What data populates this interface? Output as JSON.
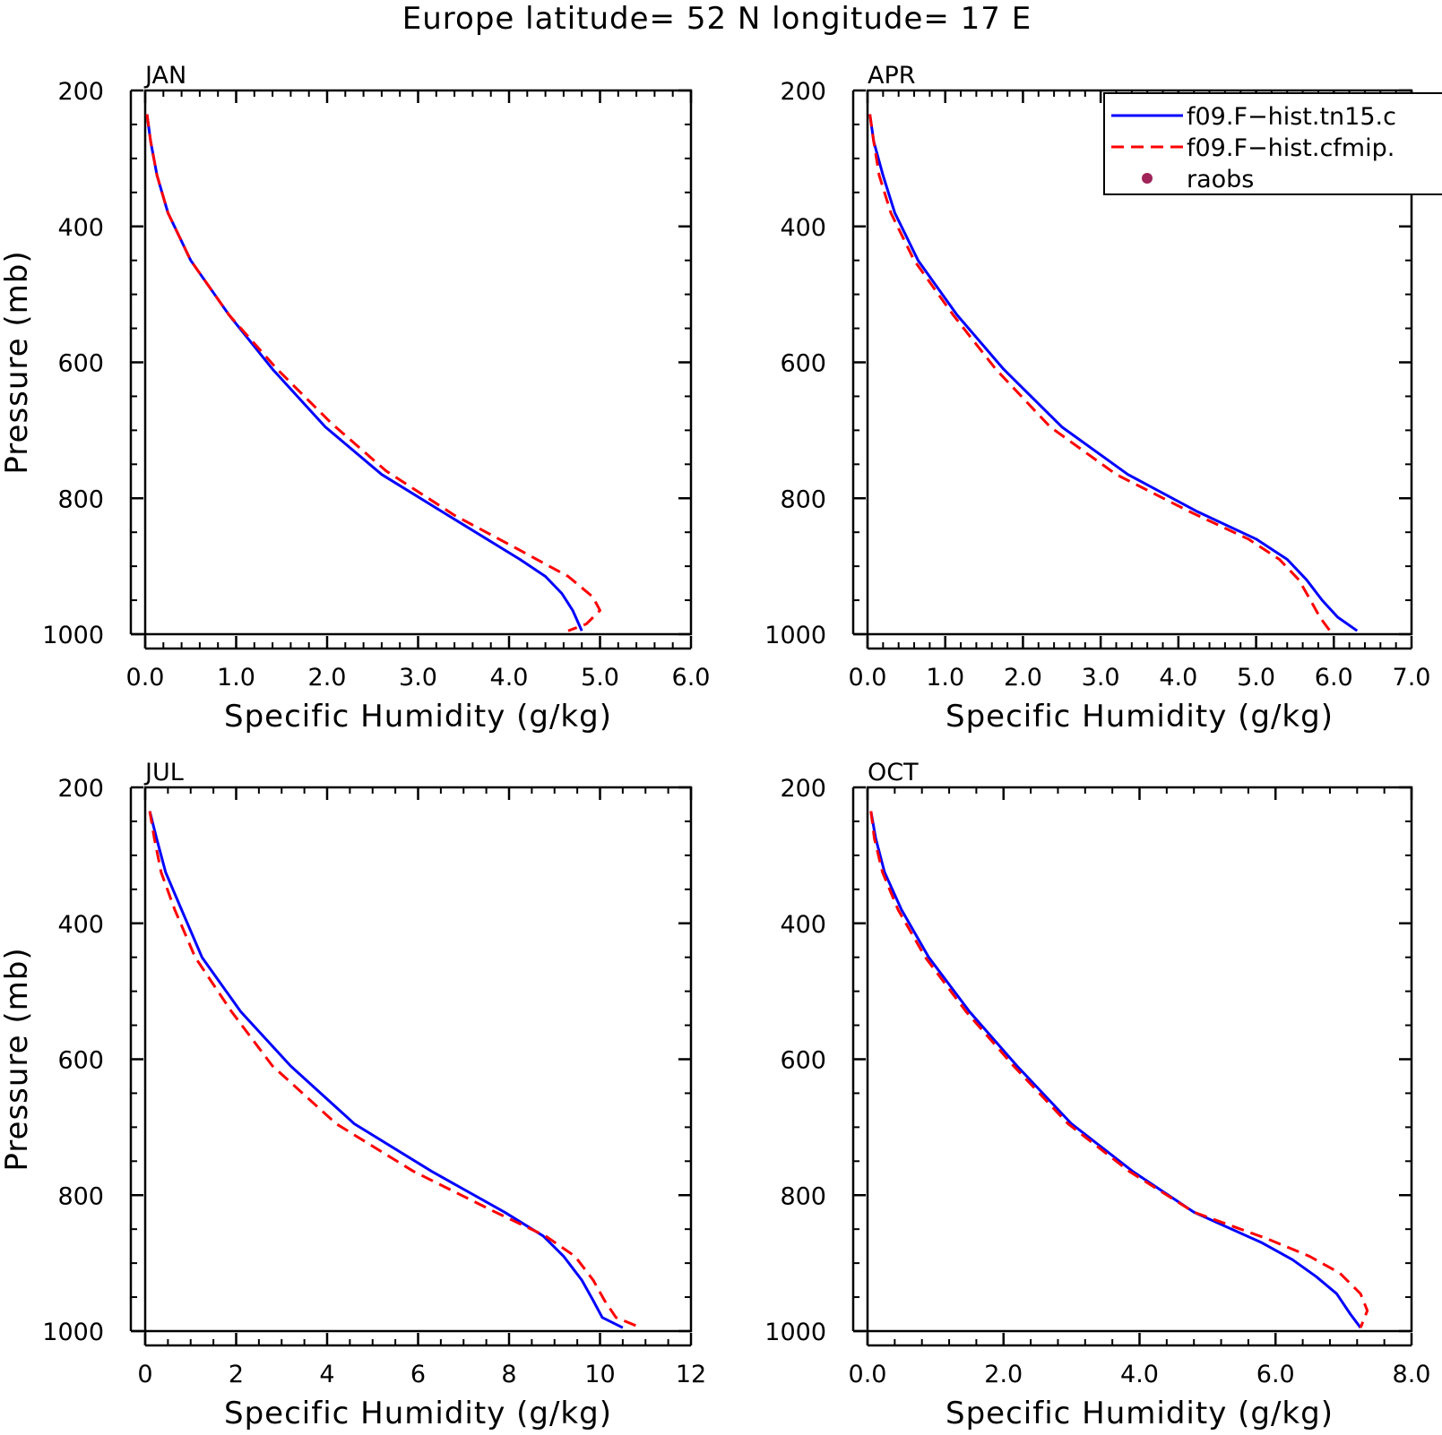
{
  "title": "Europe  latitude= 52 N longitude= 17 E",
  "legend": {
    "entries": [
      {
        "label": "f09.F−hist.tn15.c",
        "color": "#0000ff",
        "style": "solid"
      },
      {
        "label": "f09.F−hist.cfmip.",
        "color": "#ff0000",
        "style": "dashed"
      },
      {
        "label": "raobs",
        "color": "#a0245a",
        "style": "marker"
      }
    ]
  },
  "colors": {
    "series_1": "#0000ff",
    "series_2": "#ff0000",
    "raobs": "#a0245a",
    "axis": "#000000"
  },
  "chart_data": [
    {
      "type": "line",
      "panel_label": "JAN",
      "xlabel": "Specific Humidity (g/kg)",
      "ylabel": "Pressure (mb)",
      "xlim": [
        0,
        6
      ],
      "xticks": [
        "0.0",
        "1.0",
        "2.0",
        "3.0",
        "4.0",
        "5.0",
        "6.0"
      ],
      "ylim": [
        200,
        1000
      ],
      "y_inverted": true,
      "yticks": [
        "200",
        "400",
        "600",
        "800",
        "1000"
      ],
      "series": [
        {
          "name": "f09.F−hist.tn15.c",
          "points": [
            [
              0.02,
              235
            ],
            [
              0.06,
              275
            ],
            [
              0.13,
              325
            ],
            [
              0.25,
              380
            ],
            [
              0.5,
              450
            ],
            [
              0.92,
              530
            ],
            [
              1.4,
              610
            ],
            [
              1.98,
              695
            ],
            [
              2.6,
              765
            ],
            [
              3.45,
              835
            ],
            [
              4.12,
              890
            ],
            [
              4.4,
              915
            ],
            [
              4.58,
              940
            ],
            [
              4.7,
              965
            ],
            [
              4.8,
              995
            ]
          ]
        },
        {
          "name": "f09.F−hist.cfmip.",
          "points": [
            [
              0.02,
              235
            ],
            [
              0.06,
              275
            ],
            [
              0.13,
              325
            ],
            [
              0.25,
              380
            ],
            [
              0.5,
              450
            ],
            [
              0.92,
              530
            ],
            [
              1.45,
              610
            ],
            [
              2.05,
              690
            ],
            [
              2.65,
              760
            ],
            [
              3.4,
              825
            ],
            [
              4.1,
              875
            ],
            [
              4.65,
              915
            ],
            [
              4.92,
              945
            ],
            [
              5.0,
              965
            ],
            [
              4.85,
              985
            ],
            [
              4.65,
              995
            ]
          ]
        }
      ]
    },
    {
      "type": "line",
      "panel_label": "APR",
      "xlabel": "Specific Humidity (g/kg)",
      "ylabel": "",
      "xlim": [
        0,
        7
      ],
      "xticks": [
        "0.0",
        "1.0",
        "2.0",
        "3.0",
        "4.0",
        "5.0",
        "6.0",
        "7.0"
      ],
      "ylim": [
        200,
        1000
      ],
      "y_inverted": true,
      "yticks": [
        "200",
        "400",
        "600",
        "800",
        "1000"
      ],
      "series": [
        {
          "name": "f09.F−hist.tn15.c",
          "points": [
            [
              0.03,
              235
            ],
            [
              0.08,
              275
            ],
            [
              0.2,
              325
            ],
            [
              0.35,
              380
            ],
            [
              0.65,
              450
            ],
            [
              1.15,
              530
            ],
            [
              1.75,
              610
            ],
            [
              2.5,
              695
            ],
            [
              3.35,
              765
            ],
            [
              4.25,
              820
            ],
            [
              5.0,
              860
            ],
            [
              5.4,
              890
            ],
            [
              5.65,
              920
            ],
            [
              5.85,
              950
            ],
            [
              6.05,
              975
            ],
            [
              6.3,
              995
            ]
          ]
        },
        {
          "name": "f09.F−hist.cfmip.",
          "points": [
            [
              0.03,
              235
            ],
            [
              0.08,
              275
            ],
            [
              0.15,
              325
            ],
            [
              0.3,
              380
            ],
            [
              0.6,
              450
            ],
            [
              1.1,
              530
            ],
            [
              1.65,
              610
            ],
            [
              2.35,
              695
            ],
            [
              3.2,
              765
            ],
            [
              4.15,
              820
            ],
            [
              4.9,
              860
            ],
            [
              5.3,
              890
            ],
            [
              5.55,
              920
            ],
            [
              5.7,
              950
            ],
            [
              5.82,
              975
            ],
            [
              5.95,
              995
            ]
          ]
        }
      ]
    },
    {
      "type": "line",
      "panel_label": "JUL",
      "xlabel": "Specific Humidity (g/kg)",
      "ylabel": "Pressure (mb)",
      "xlim": [
        0,
        12
      ],
      "xticks": [
        "0",
        "2",
        "4",
        "6",
        "8",
        "10",
        "12"
      ],
      "ylim": [
        200,
        1000
      ],
      "y_inverted": true,
      "yticks": [
        "200",
        "400",
        "600",
        "800",
        "1000"
      ],
      "series": [
        {
          "name": "f09.F−hist.tn15.c",
          "points": [
            [
              0.1,
              235
            ],
            [
              0.25,
              275
            ],
            [
              0.45,
              325
            ],
            [
              0.8,
              380
            ],
            [
              1.25,
              450
            ],
            [
              2.1,
              530
            ],
            [
              3.2,
              610
            ],
            [
              4.6,
              695
            ],
            [
              6.3,
              765
            ],
            [
              7.9,
              825
            ],
            [
              8.75,
              860
            ],
            [
              9.2,
              890
            ],
            [
              9.6,
              925
            ],
            [
              9.85,
              955
            ],
            [
              10.05,
              980
            ],
            [
              10.5,
              995
            ]
          ]
        },
        {
          "name": "f09.F−hist.cfmip.",
          "points": [
            [
              0.1,
              235
            ],
            [
              0.2,
              275
            ],
            [
              0.35,
              325
            ],
            [
              0.65,
              380
            ],
            [
              1.1,
              450
            ],
            [
              1.9,
              530
            ],
            [
              2.8,
              610
            ],
            [
              4.2,
              695
            ],
            [
              5.9,
              765
            ],
            [
              7.7,
              825
            ],
            [
              8.8,
              860
            ],
            [
              9.45,
              890
            ],
            [
              9.85,
              925
            ],
            [
              10.1,
              955
            ],
            [
              10.35,
              980
            ],
            [
              10.9,
              995
            ]
          ]
        }
      ]
    },
    {
      "type": "line",
      "panel_label": "OCT",
      "xlabel": "Specific Humidity (g/kg)",
      "ylabel": "",
      "xlim": [
        0,
        8
      ],
      "xticks": [
        "0.0",
        "2.0",
        "4.0",
        "6.0",
        "8.0"
      ],
      "ylim": [
        200,
        1000
      ],
      "y_inverted": true,
      "yticks": [
        "200",
        "400",
        "600",
        "800",
        "1000"
      ],
      "series": [
        {
          "name": "f09.F−hist.tn15.c",
          "points": [
            [
              0.05,
              235
            ],
            [
              0.12,
              275
            ],
            [
              0.25,
              325
            ],
            [
              0.5,
              380
            ],
            [
              0.9,
              450
            ],
            [
              1.5,
              530
            ],
            [
              2.2,
              610
            ],
            [
              3.0,
              695
            ],
            [
              3.9,
              765
            ],
            [
              4.8,
              825
            ],
            [
              5.8,
              870
            ],
            [
              6.25,
              895
            ],
            [
              6.6,
              920
            ],
            [
              6.9,
              945
            ],
            [
              7.1,
              975
            ],
            [
              7.25,
              995
            ]
          ]
        },
        {
          "name": "f09.F−hist.cfmip.",
          "points": [
            [
              0.05,
              235
            ],
            [
              0.1,
              275
            ],
            [
              0.22,
              325
            ],
            [
              0.45,
              380
            ],
            [
              0.85,
              450
            ],
            [
              1.45,
              530
            ],
            [
              2.15,
              610
            ],
            [
              2.95,
              695
            ],
            [
              3.85,
              765
            ],
            [
              4.8,
              825
            ],
            [
              5.9,
              865
            ],
            [
              6.5,
              890
            ],
            [
              6.95,
              915
            ],
            [
              7.25,
              945
            ],
            [
              7.35,
              970
            ],
            [
              7.25,
              995
            ]
          ]
        }
      ]
    }
  ]
}
